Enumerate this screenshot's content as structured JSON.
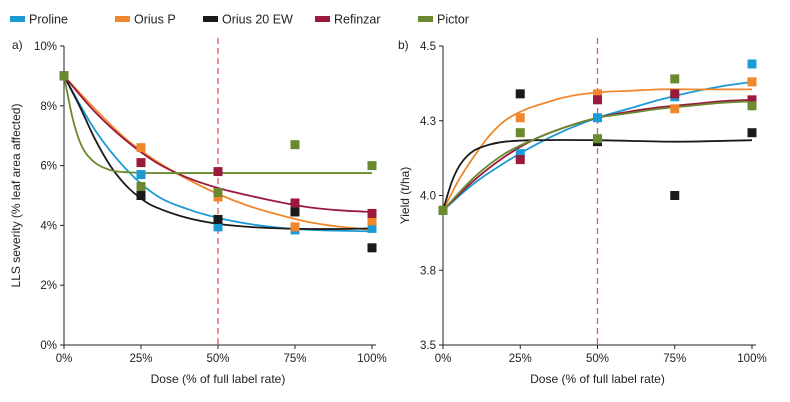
{
  "legend": [
    {
      "name": "Proline",
      "color": "#1c9ad6"
    },
    {
      "name": "Orius P",
      "color": "#f0872d"
    },
    {
      "name": "Orius 20 EW",
      "color": "#1a1a1a"
    },
    {
      "name": "Refinzar",
      "color": "#9b1a3c"
    },
    {
      "name": "Pictor",
      "color": "#6a8a2f"
    }
  ],
  "chart_data": [
    {
      "type": "scatter",
      "panel_label": "a)",
      "xlabel": "Dose (% of full label rate)",
      "ylabel": "LLS severity (% leaf area affected)",
      "x": [
        0,
        25,
        50,
        75,
        100
      ],
      "xticks": [
        "0%",
        "25%",
        "50%",
        "75%",
        "100%"
      ],
      "yticks": [
        {
          "v": 0,
          "label": "0%"
        },
        {
          "v": 2,
          "label": "2%"
        },
        {
          "v": 4,
          "label": "4%"
        },
        {
          "v": 6,
          "label": "6%"
        },
        {
          "v": 8,
          "label": "8%"
        },
        {
          "v": 10,
          "label": "10%"
        }
      ],
      "ylim": [
        0,
        10
      ],
      "xlim": [
        0,
        100
      ],
      "ref_line_x": 50,
      "series": [
        {
          "name": "Proline",
          "points": [
            9.0,
            5.7,
            3.95,
            3.85,
            3.9
          ],
          "curve": [
            [
              0,
              9.0
            ],
            [
              10,
              7.2
            ],
            [
              20,
              5.9
            ],
            [
              30,
              5.0
            ],
            [
              40,
              4.55
            ],
            [
              50,
              4.25
            ],
            [
              60,
              4.05
            ],
            [
              70,
              3.92
            ],
            [
              80,
              3.85
            ],
            [
              90,
              3.82
            ],
            [
              100,
              3.8
            ]
          ]
        },
        {
          "name": "Orius P",
          "points": [
            9.0,
            6.6,
            4.95,
            3.95,
            4.15
          ],
          "curve": [
            [
              0,
              9.0
            ],
            [
              10,
              7.9
            ],
            [
              20,
              6.9
            ],
            [
              30,
              6.15
            ],
            [
              40,
              5.55
            ],
            [
              50,
              5.05
            ],
            [
              60,
              4.65
            ],
            [
              70,
              4.35
            ],
            [
              80,
              4.1
            ],
            [
              90,
              3.95
            ],
            [
              100,
              3.85
            ]
          ]
        },
        {
          "name": "Orius 20 EW",
          "points": [
            9.0,
            5.0,
            4.2,
            4.45,
            3.25
          ],
          "curve": [
            [
              0,
              9.0
            ],
            [
              5,
              8.0
            ],
            [
              10,
              6.9
            ],
            [
              15,
              6.0
            ],
            [
              20,
              5.35
            ],
            [
              25,
              4.9
            ],
            [
              30,
              4.6
            ],
            [
              40,
              4.25
            ],
            [
              50,
              4.05
            ],
            [
              60,
              3.95
            ],
            [
              70,
              3.9
            ],
            [
              80,
              3.88
            ],
            [
              90,
              3.88
            ],
            [
              100,
              3.9
            ]
          ]
        },
        {
          "name": "Refinzar",
          "points": [
            9.0,
            6.1,
            5.8,
            4.75,
            4.4
          ],
          "curve": [
            [
              0,
              9.0
            ],
            [
              10,
              7.8
            ],
            [
              20,
              6.85
            ],
            [
              30,
              6.1
            ],
            [
              40,
              5.6
            ],
            [
              50,
              5.25
            ],
            [
              60,
              5.0
            ],
            [
              70,
              4.78
            ],
            [
              80,
              4.6
            ],
            [
              90,
              4.5
            ],
            [
              100,
              4.45
            ]
          ]
        },
        {
          "name": "Pictor",
          "points": [
            9.0,
            5.3,
            5.1,
            6.7,
            6.0
          ],
          "curve": [
            [
              0,
              9.0
            ],
            [
              3,
              7.5
            ],
            [
              6,
              6.6
            ],
            [
              10,
              6.1
            ],
            [
              15,
              5.85
            ],
            [
              20,
              5.78
            ],
            [
              30,
              5.75
            ],
            [
              50,
              5.75
            ],
            [
              75,
              5.75
            ],
            [
              100,
              5.75
            ]
          ]
        }
      ]
    },
    {
      "type": "scatter",
      "panel_label": "b)",
      "xlabel": "Dose (% of full label rate)",
      "ylabel": "Yield (t/ha)",
      "x": [
        0,
        25,
        50,
        75,
        100
      ],
      "xticks": [
        "0%",
        "25%",
        "50%",
        "75%",
        "100%"
      ],
      "yticks": [
        {
          "v": 3.5,
          "label": "3.5"
        },
        {
          "v": 3.75,
          "label": "3.8"
        },
        {
          "v": 4.0,
          "label": "4.0"
        },
        {
          "v": 4.25,
          "label": "4.3"
        },
        {
          "v": 4.5,
          "label": "4.5"
        }
      ],
      "ylim": [
        3.5,
        4.5
      ],
      "xlim": [
        0,
        100
      ],
      "ref_line_x": 50,
      "series": [
        {
          "name": "Proline",
          "points": [
            3.95,
            4.14,
            4.26,
            4.33,
            4.44
          ],
          "curve": [
            [
              0,
              3.95
            ],
            [
              10,
              4.04
            ],
            [
              20,
              4.11
            ],
            [
              30,
              4.17
            ],
            [
              40,
              4.22
            ],
            [
              50,
              4.26
            ],
            [
              60,
              4.29
            ],
            [
              70,
              4.32
            ],
            [
              80,
              4.345
            ],
            [
              90,
              4.365
            ],
            [
              100,
              4.38
            ]
          ]
        },
        {
          "name": "Orius P",
          "points": [
            3.95,
            4.26,
            4.34,
            4.29,
            4.38
          ],
          "curve": [
            [
              0,
              3.95
            ],
            [
              5,
              4.05
            ],
            [
              10,
              4.13
            ],
            [
              15,
              4.2
            ],
            [
              20,
              4.25
            ],
            [
              25,
              4.28
            ],
            [
              30,
              4.3
            ],
            [
              40,
              4.33
            ],
            [
              50,
              4.345
            ],
            [
              60,
              4.35
            ],
            [
              70,
              4.355
            ],
            [
              80,
              4.355
            ],
            [
              90,
              4.355
            ],
            [
              100,
              4.355
            ]
          ]
        },
        {
          "name": "Orius 20 EW",
          "points": [
            3.95,
            4.34,
            4.18,
            4.0,
            4.21
          ],
          "curve": [
            [
              0,
              3.95
            ],
            [
              3,
              4.05
            ],
            [
              6,
              4.11
            ],
            [
              10,
              4.15
            ],
            [
              15,
              4.17
            ],
            [
              20,
              4.18
            ],
            [
              30,
              4.185
            ],
            [
              50,
              4.185
            ],
            [
              75,
              4.18
            ],
            [
              100,
              4.185
            ]
          ]
        },
        {
          "name": "Refinzar",
          "points": [
            3.95,
            4.12,
            4.32,
            4.34,
            4.32
          ],
          "curve": [
            [
              0,
              3.95
            ],
            [
              10,
              4.05
            ],
            [
              20,
              4.13
            ],
            [
              30,
              4.19
            ],
            [
              40,
              4.23
            ],
            [
              50,
              4.26
            ],
            [
              60,
              4.28
            ],
            [
              70,
              4.295
            ],
            [
              80,
              4.305
            ],
            [
              90,
              4.315
            ],
            [
              100,
              4.32
            ]
          ]
        },
        {
          "name": "Pictor",
          "points": [
            3.95,
            4.21,
            4.19,
            4.39,
            4.3
          ],
          "curve": [
            [
              0,
              3.95
            ],
            [
              10,
              4.06
            ],
            [
              20,
              4.14
            ],
            [
              30,
              4.19
            ],
            [
              40,
              4.23
            ],
            [
              50,
              4.26
            ],
            [
              60,
              4.275
            ],
            [
              70,
              4.29
            ],
            [
              80,
              4.3
            ],
            [
              90,
              4.31
            ],
            [
              100,
              4.315
            ]
          ]
        }
      ]
    }
  ]
}
